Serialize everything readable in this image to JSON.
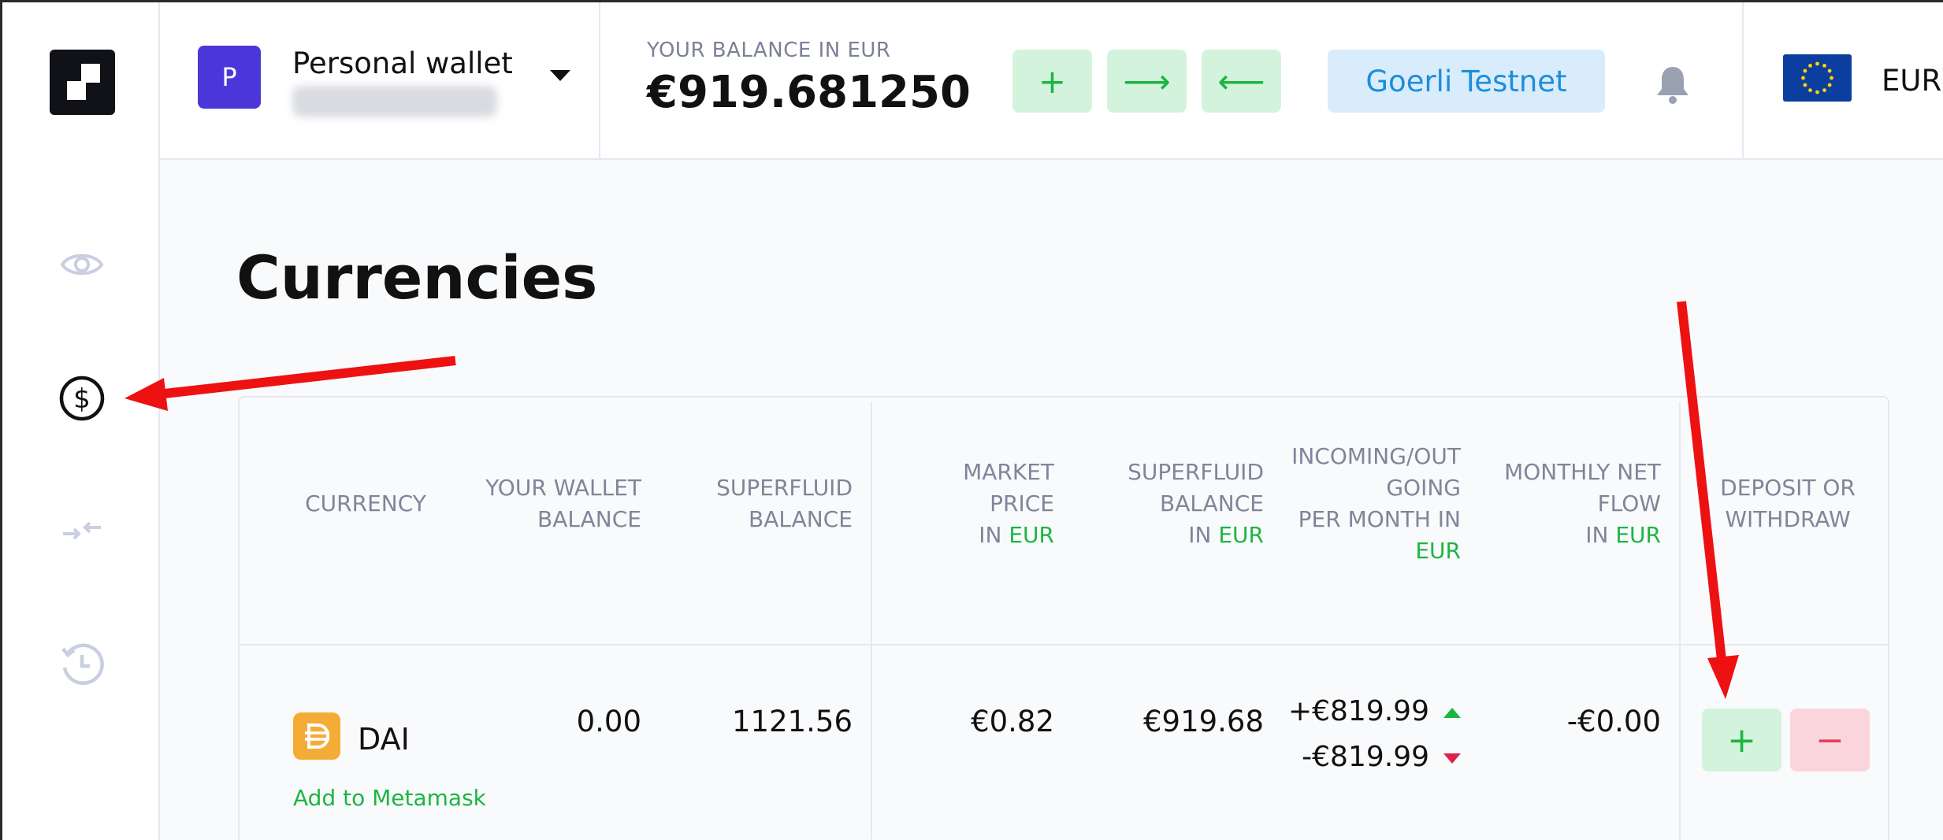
{
  "sidebar": {
    "logo": "logo-icon",
    "items": [
      {
        "icon": "eye-icon"
      },
      {
        "icon": "dollar-circle-icon",
        "active": true
      },
      {
        "icon": "transfer-arrows-icon"
      },
      {
        "icon": "history-icon"
      }
    ]
  },
  "header": {
    "wallet": {
      "avatar_letter": "P",
      "name": "Personal wallet"
    },
    "balance_label": "YOUR BALANCE IN EUR",
    "balance_value": "€919.681250",
    "actions": [
      {
        "icon": "plus-icon",
        "glyph": "+"
      },
      {
        "icon": "arrow-right-icon",
        "glyph": "⟶"
      },
      {
        "icon": "arrow-left-icon",
        "glyph": "⟵"
      }
    ],
    "network": "Goerli Testnet",
    "currency": "EUR",
    "colors": {
      "accent_green": "#1cb543",
      "network_blue": "#1c8ed9",
      "avatar_purple": "#4b37d9"
    }
  },
  "main": {
    "title": "Currencies",
    "table": {
      "headers": {
        "currency": "CURRENCY",
        "wallet_balance": [
          "YOUR WALLET",
          "BALANCE"
        ],
        "superfluid_balance": [
          "SUPERFLUID",
          "BALANCE"
        ],
        "market_price": [
          "MARKET",
          "PRICE",
          "IN ",
          "EUR"
        ],
        "superfluid_balance_eur": [
          "SUPERFLUID",
          "BALANCE",
          "IN ",
          "EUR"
        ],
        "incoming_outgoing": [
          "INCOMING/OUT",
          "GOING",
          "PER MONTH IN",
          "EUR"
        ],
        "monthly_net_flow": [
          "MONTHLY NET",
          "FLOW",
          "IN ",
          "EUR"
        ],
        "deposit_withdraw": [
          "DEPOSIT OR",
          "WITHDRAW"
        ]
      },
      "rows": [
        {
          "token": "DAI",
          "add_to_metamask": "Add to Metamask",
          "wallet_balance": "0.00",
          "superfluid_balance": "1121.56",
          "market_price": "€0.82",
          "superfluid_balance_eur": "€919.68",
          "incoming": "+€819.99",
          "outgoing": "-€819.99",
          "monthly_net_flow": "-€0.00",
          "deposit_label": "+",
          "withdraw_label": "−"
        }
      ]
    }
  }
}
